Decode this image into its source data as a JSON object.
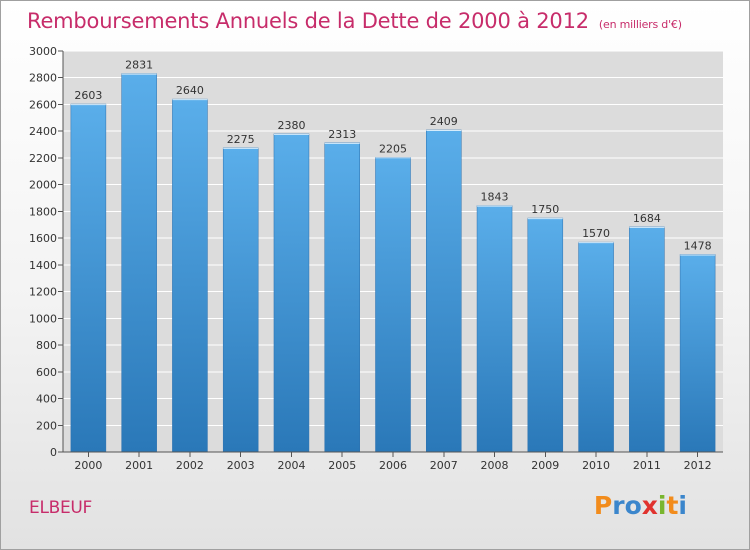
{
  "chart_data": {
    "type": "bar",
    "title": "Remboursements Annuels de la Dette de 2000 à 2012",
    "subtitle": "(en milliers d'€)",
    "categories": [
      "2000",
      "2001",
      "2002",
      "2003",
      "2004",
      "2005",
      "2006",
      "2007",
      "2008",
      "2009",
      "2010",
      "2011",
      "2012"
    ],
    "values": [
      2603,
      2831,
      2640,
      2275,
      2380,
      2313,
      2205,
      2409,
      1843,
      1750,
      1570,
      1684,
      1478
    ],
    "value_labels": [
      "2603",
      "2831",
      "2640",
      "2275",
      "2380",
      "2313",
      "2205",
      "2409",
      "1843",
      "1750",
      "1570",
      "1684",
      "1478"
    ],
    "ylim": [
      0,
      3000
    ],
    "yticks": [
      "0",
      "200",
      "400",
      "600",
      "800",
      "1000",
      "1200",
      "1400",
      "1600",
      "1800",
      "2000",
      "2200",
      "2400",
      "2600",
      "2800",
      "3000"
    ],
    "grid": true,
    "bar_color_top": "#5aaeea",
    "bar_color_bottom": "#2a78b8",
    "xlabel": "",
    "ylabel": ""
  },
  "commune": "ELBEUF",
  "brand": {
    "name": "Proxiti",
    "letters": [
      "P",
      "r",
      "o",
      "x",
      "i",
      "t",
      "i"
    ]
  }
}
